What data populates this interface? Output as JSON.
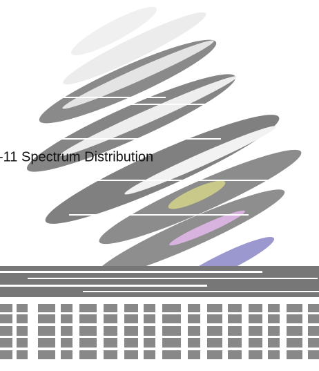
{
  "caption": "-11 Spectrum Distribution"
}
